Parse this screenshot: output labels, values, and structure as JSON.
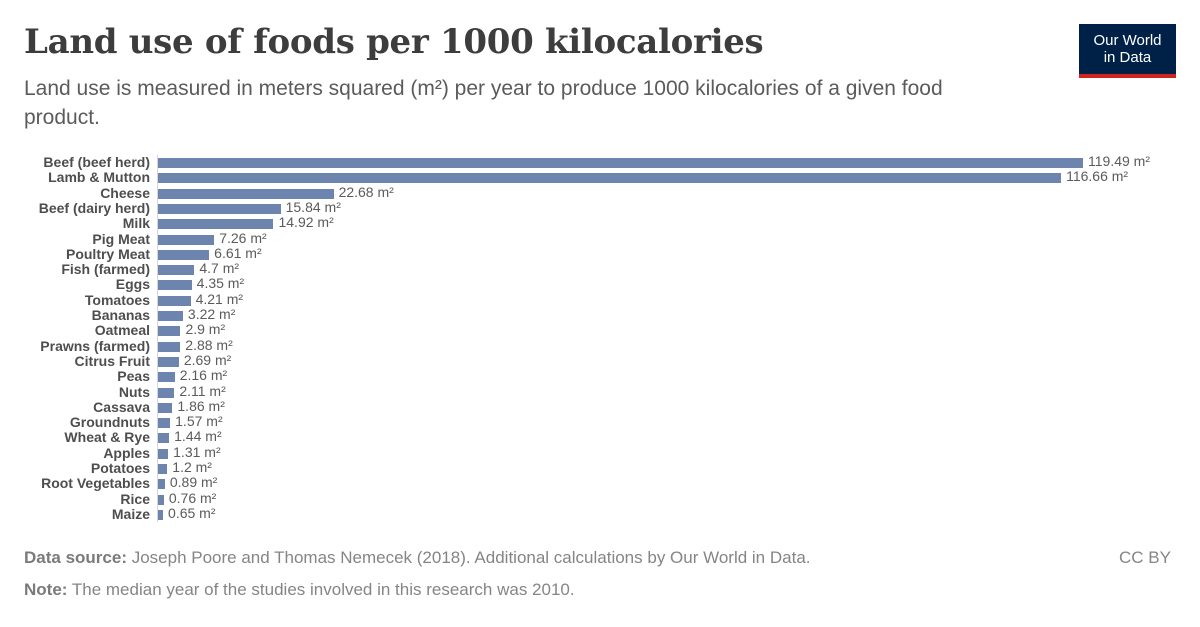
{
  "header": {
    "title": "Land use of foods per 1000 kilocalories",
    "subtitle": "Land use is measured in meters squared (m²) per year to produce 1000 kilocalories of a given food product.",
    "logo_line1": "Our World",
    "logo_line2": "in Data"
  },
  "footer": {
    "source_label": "Data source:",
    "source_text": " Joseph Poore and Thomas Nemecek (2018). Additional calculations by Our World in Data.",
    "note_label": "Note:",
    "note_text": " The median year of the studies involved in this research was 2010.",
    "license": "CC BY"
  },
  "colors": {
    "bar": "#6d84ae",
    "logo_bg": "#002147",
    "logo_accent": "#ce261e"
  },
  "chart_data": {
    "type": "bar",
    "orientation": "horizontal",
    "title": "Land use of foods per 1000 kilocalories",
    "subtitle": "Land use is measured in meters squared (m²) per year to produce 1000 kilocalories of a given food product.",
    "xlabel": "",
    "ylabel": "",
    "unit": "m²",
    "grid": false,
    "legend": null,
    "xlim": [
      0,
      119.49
    ],
    "categories": [
      "Beef (beef herd)",
      "Lamb & Mutton",
      "Cheese",
      "Beef (dairy herd)",
      "Milk",
      "Pig Meat",
      "Poultry Meat",
      "Fish (farmed)",
      "Eggs",
      "Tomatoes",
      "Bananas",
      "Oatmeal",
      "Prawns (farmed)",
      "Citrus Fruit",
      "Peas",
      "Nuts",
      "Cassava",
      "Groundnuts",
      "Wheat & Rye",
      "Apples",
      "Potatoes",
      "Root Vegetables",
      "Rice",
      "Maize"
    ],
    "values": [
      119.49,
      116.66,
      22.68,
      15.84,
      14.92,
      7.26,
      6.61,
      4.7,
      4.35,
      4.21,
      3.22,
      2.9,
      2.88,
      2.69,
      2.16,
      2.11,
      1.86,
      1.57,
      1.44,
      1.31,
      1.2,
      0.89,
      0.76,
      0.65
    ],
    "value_labels": [
      "119.49 m²",
      "116.66 m²",
      "22.68 m²",
      "15.84 m²",
      "14.92 m²",
      "7.26 m²",
      "6.61 m²",
      "4.7 m²",
      "4.35 m²",
      "4.21 m²",
      "3.22 m²",
      "2.9 m²",
      "2.88 m²",
      "2.69 m²",
      "2.16 m²",
      "2.11 m²",
      "1.86 m²",
      "1.57 m²",
      "1.44 m²",
      "1.31 m²",
      "1.2 m²",
      "0.89 m²",
      "0.76 m²",
      "0.65 m²"
    ]
  }
}
